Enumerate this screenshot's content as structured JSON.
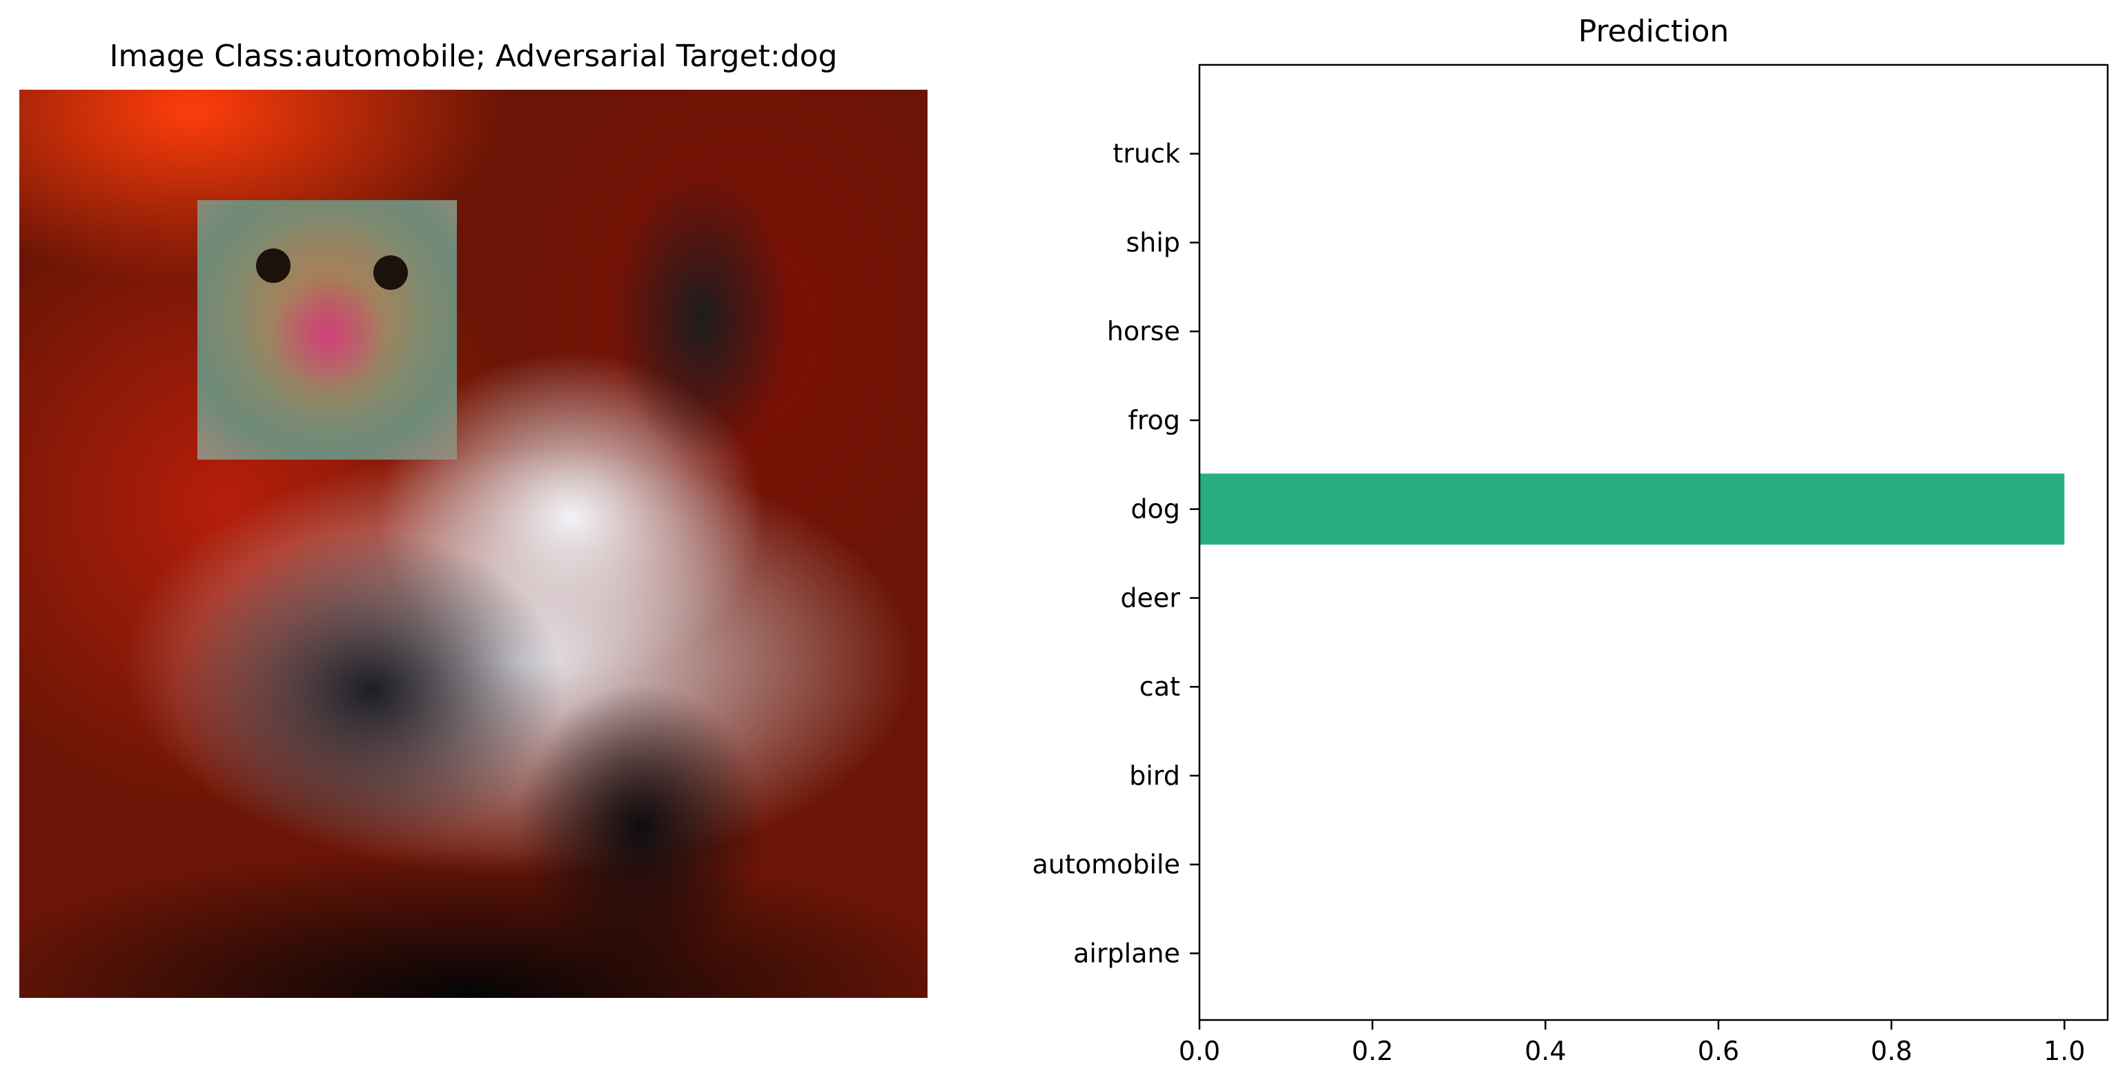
{
  "figure": {
    "left_title": "Image Class:automobile; Adversarial Target:dog",
    "right_title": "Prediction"
  },
  "image": {
    "description_icon": "car-photo-with-adversarial-dog-patch",
    "patch_icon": "dog-face-patch"
  },
  "chart_data": {
    "type": "bar",
    "orientation": "horizontal",
    "title": "Prediction",
    "xlabel": "",
    "ylabel": "",
    "categories": [
      "airplane",
      "automobile",
      "bird",
      "cat",
      "deer",
      "dog",
      "frog",
      "horse",
      "ship",
      "truck"
    ],
    "values": [
      0,
      0,
      0,
      0,
      0,
      1.0,
      0,
      0,
      0,
      0
    ],
    "xlim": [
      0,
      1.05
    ],
    "xticks": [
      "0.0",
      "0.2",
      "0.4",
      "0.6",
      "0.8",
      "1.0"
    ],
    "bar_color": "#2aae7f",
    "grid": false
  }
}
